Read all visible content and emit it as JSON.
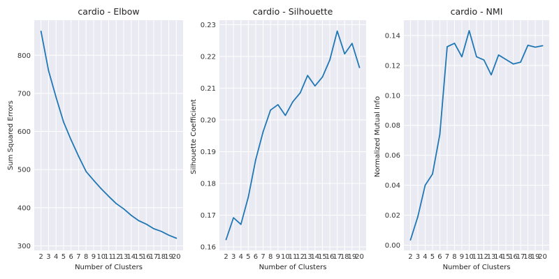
{
  "chart_data": [
    {
      "type": "line",
      "title": "cardio - Elbow",
      "xlabel": "Number of Clusters",
      "ylabel": "Sum Squared Errors",
      "x": [
        2,
        3,
        4,
        5,
        6,
        7,
        8,
        9,
        10,
        11,
        12,
        13,
        14,
        15,
        16,
        17,
        18,
        19,
        20
      ],
      "series": [
        {
          "values": [
            863,
            760,
            690,
            625,
            578,
            535,
            495,
            472,
            450,
            430,
            411,
            397,
            380,
            366,
            357,
            345,
            338,
            328,
            320
          ]
        }
      ],
      "xlim": [
        1.1,
        20.9
      ],
      "ylim": [
        288,
        892
      ],
      "yticks": [
        300,
        400,
        500,
        600,
        700,
        800
      ],
      "ytick_decimals": 0,
      "grid": true,
      "color": "#1f77b4"
    },
    {
      "type": "line",
      "title": "cardio - Silhouette",
      "xlabel": "Number of Clusters",
      "ylabel": "Silhouette Coefficient",
      "x": [
        2,
        3,
        4,
        5,
        6,
        7,
        8,
        9,
        10,
        11,
        12,
        13,
        14,
        15,
        16,
        17,
        18,
        19,
        20
      ],
      "series": [
        {
          "values": [
            0.1623,
            0.1692,
            0.1671,
            0.1757,
            0.1875,
            0.1963,
            0.2031,
            0.2048,
            0.2014,
            0.2057,
            0.2085,
            0.214,
            0.2107,
            0.2135,
            0.2189,
            0.228,
            0.2208,
            0.2241,
            0.2165
          ]
        }
      ],
      "xlim": [
        1.1,
        20.9
      ],
      "ylim": [
        0.1589,
        0.2314
      ],
      "yticks": [
        0.16,
        0.17,
        0.18,
        0.19,
        0.2,
        0.21,
        0.22,
        0.23
      ],
      "ytick_decimals": 2,
      "grid": true,
      "color": "#1f77b4"
    },
    {
      "type": "line",
      "title": "cardio - NMI",
      "xlabel": "Number of Clusters",
      "ylabel": "Normalized Mutual Info",
      "x": [
        2,
        3,
        4,
        5,
        6,
        7,
        8,
        9,
        10,
        11,
        12,
        13,
        14,
        15,
        16,
        17,
        18,
        19,
        20
      ],
      "series": [
        {
          "values": [
            0.0035,
            0.019,
            0.04,
            0.0475,
            0.074,
            0.1325,
            0.1348,
            0.1258,
            0.1432,
            0.1258,
            0.1237,
            0.1137,
            0.127,
            0.124,
            0.121,
            0.1222,
            0.1335,
            0.1322,
            0.1332
          ]
        }
      ],
      "xlim": [
        1.1,
        20.9
      ],
      "ylim": [
        -0.0035,
        0.1502
      ],
      "yticks": [
        0.0,
        0.02,
        0.04,
        0.06,
        0.08,
        0.1,
        0.12,
        0.14
      ],
      "ytick_decimals": 2,
      "grid": true,
      "color": "#1f77b4"
    }
  ]
}
